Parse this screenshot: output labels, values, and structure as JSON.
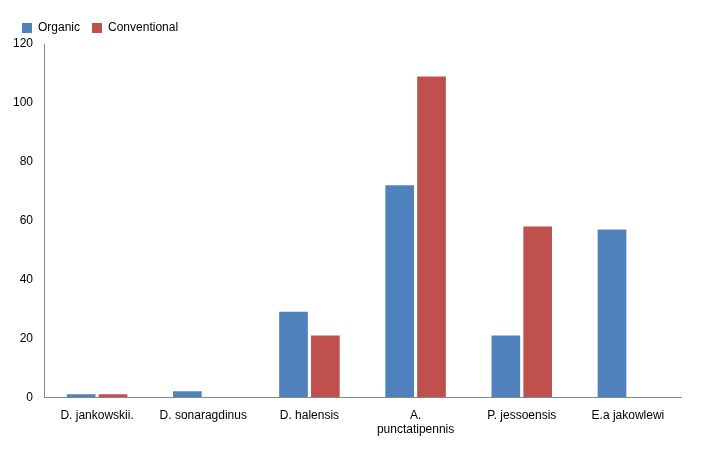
{
  "chart_data": {
    "type": "bar",
    "categories": [
      "D. jankowskii.",
      "D. sonaragdinus",
      "D. halensis",
      "A. punctatipennis",
      "P. jessoensis",
      "E.a jakowlewi"
    ],
    "series": [
      {
        "name": "Organic",
        "color": "#4f81bd",
        "values": [
          1,
          2,
          29,
          72,
          21,
          57
        ]
      },
      {
        "name": "Conventional",
        "color": "#c0504d",
        "values": [
          1,
          0,
          21,
          109,
          58,
          0
        ]
      }
    ],
    "ylim": [
      0,
      120
    ],
    "yticks": [
      0,
      20,
      40,
      60,
      80,
      100,
      120
    ],
    "grid": false,
    "legend": "upper left"
  }
}
